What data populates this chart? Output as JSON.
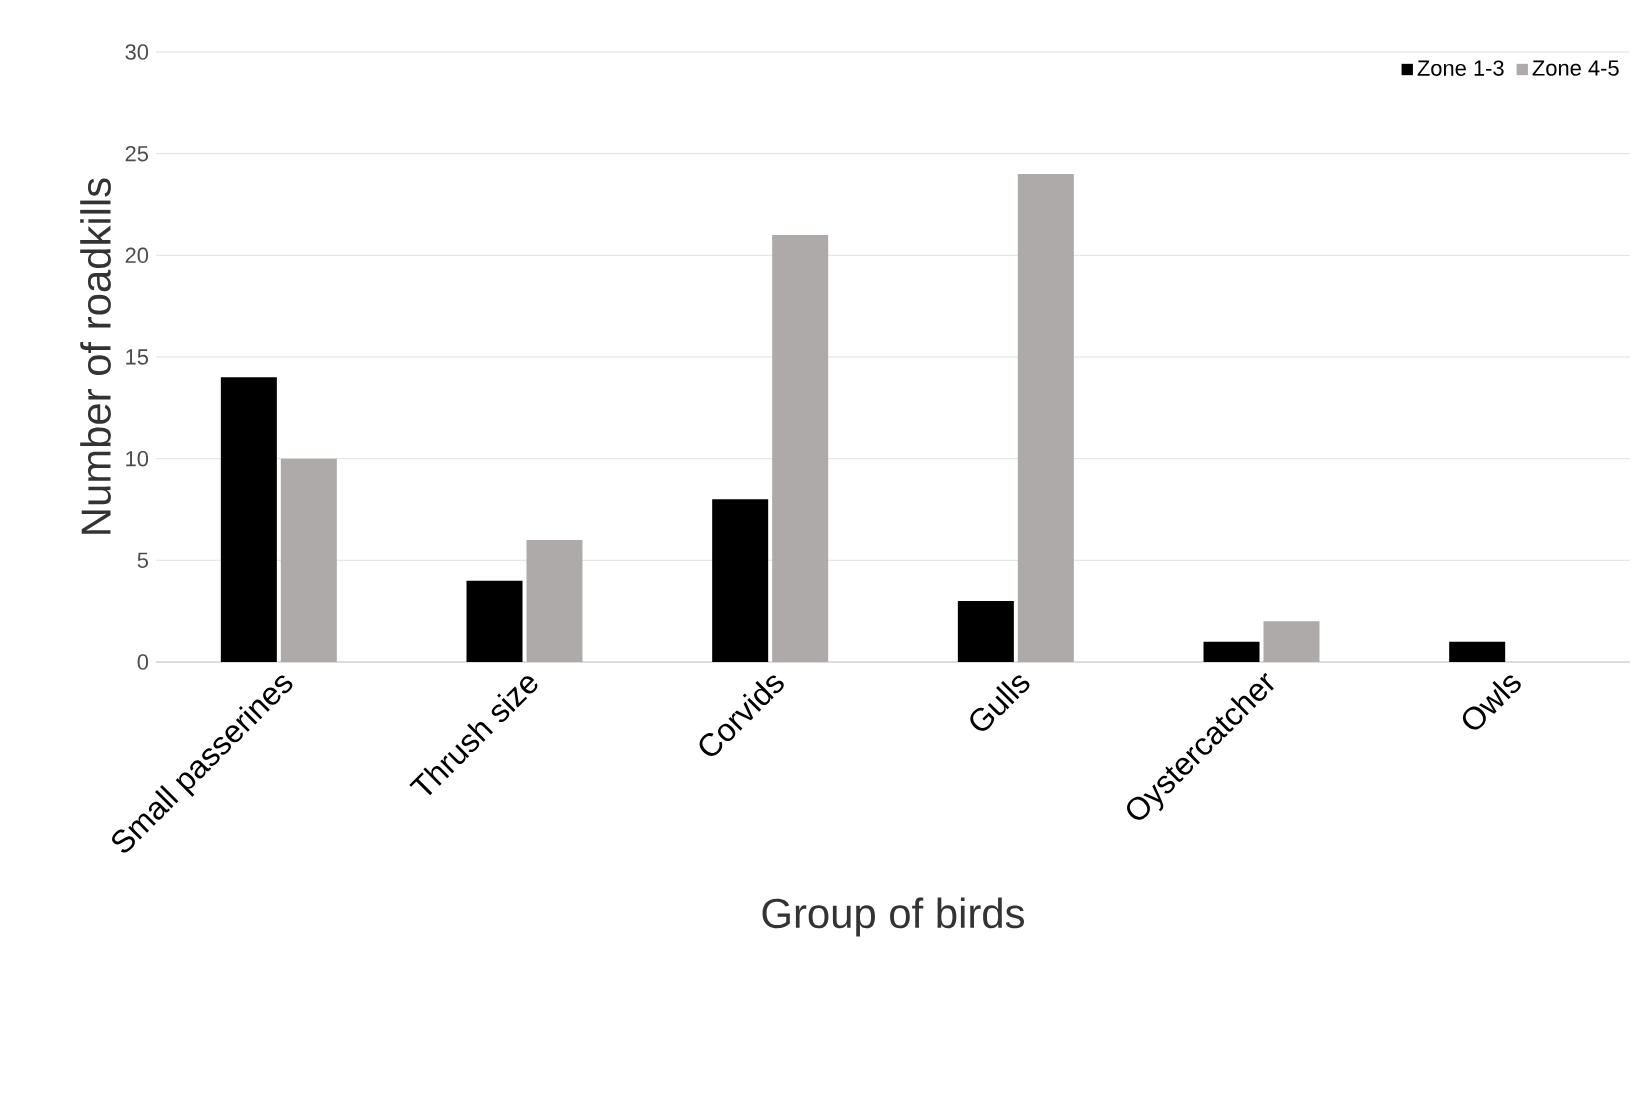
{
  "chart_data": {
    "type": "bar",
    "xlabel": "Group of birds",
    "ylabel": "Number of roadkills",
    "categories": [
      "Small passerines",
      "Thrush size",
      "Corvids",
      "Gulls",
      "Oystercatcher",
      "Owls"
    ],
    "series": [
      {
        "name": "Zone 1-3",
        "color": "#000000",
        "values": [
          14,
          4,
          8,
          3,
          1,
          1
        ]
      },
      {
        "name": "Zone 4-5",
        "color": "#aeaaaa",
        "values": [
          10,
          6,
          21,
          24,
          2,
          null
        ]
      }
    ],
    "ylim": [
      0,
      30
    ],
    "yticks": [
      0,
      5,
      10,
      15,
      20,
      25,
      30
    ],
    "grid": "y",
    "legend": "top right"
  }
}
